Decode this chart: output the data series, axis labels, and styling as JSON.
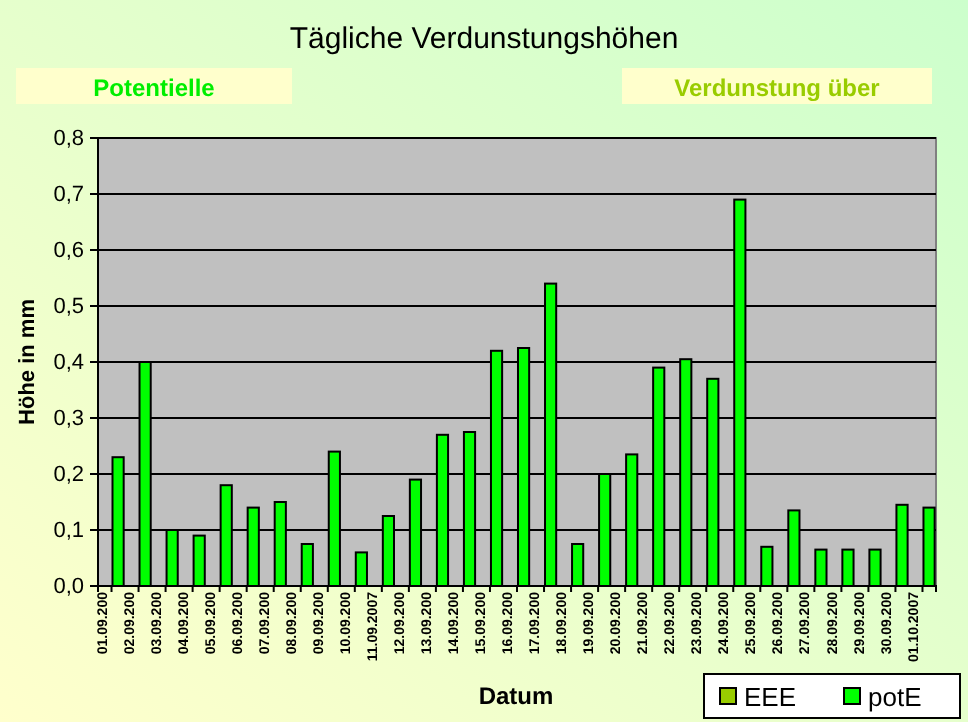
{
  "chart_data": {
    "type": "bar",
    "title": "Tägliche Verdunstungshöhen",
    "xlabel": "Datum",
    "ylabel": "Höhe in mm",
    "annotations": [
      "Potentielle",
      "Verdunstung über"
    ],
    "categories": [
      "01.09.200",
      "02.09.200",
      "03.09.200",
      "04.09.200",
      "05.09.200",
      "06.09.200",
      "07.09.200",
      "08.09.200",
      "09.09.200",
      "10.09.200",
      "11.09.2007",
      "12.09.200",
      "13.09.200",
      "14.09.200",
      "15.09.200",
      "16.09.200",
      "17.09.200",
      "18.09.200",
      "19.09.200",
      "20.09.200",
      "21.09.200",
      "22.09.200",
      "23.09.200",
      "24.09.200",
      "25.09.200",
      "26.09.200",
      "27.09.200",
      "28.09.200",
      "29.09.200",
      "30.09.200",
      "01.10.2007"
    ],
    "series": [
      {
        "name": "EEE",
        "color": "#99cc00",
        "values": [
          0,
          0,
          0,
          0,
          0,
          0,
          0,
          0,
          0,
          0,
          0,
          0,
          0,
          0,
          0,
          0,
          0,
          0,
          0,
          0,
          0,
          0,
          0,
          0,
          0,
          0,
          0,
          0,
          0,
          0,
          0
        ]
      },
      {
        "name": "potE",
        "color": "#00ff00",
        "values": [
          0.23,
          0.4,
          0.1,
          0.09,
          0.18,
          0.14,
          0.15,
          0.075,
          0.24,
          0.06,
          0.125,
          0.19,
          0.27,
          0.275,
          0.42,
          0.425,
          0.54,
          0.075,
          0.2,
          0.235,
          0.39,
          0.405,
          0.37,
          0.69,
          0.07,
          0.135,
          0.065,
          0.065,
          0.065,
          0.145,
          0.14
        ]
      }
    ],
    "ylim": [
      0,
      0.8
    ],
    "yticks": [
      {
        "value": 0,
        "label": "0,0"
      },
      {
        "value": 0.1,
        "label": "0,1"
      },
      {
        "value": 0.2,
        "label": "0,2"
      },
      {
        "value": 0.3,
        "label": "0,3"
      },
      {
        "value": 0.4,
        "label": "0,4"
      },
      {
        "value": 0.5,
        "label": "0,5"
      },
      {
        "value": 0.6,
        "label": "0,6"
      },
      {
        "value": 0.7,
        "label": "0,7"
      },
      {
        "value": 0.8,
        "label": "0,8"
      }
    ],
    "grid": "y",
    "legend": "bottom right"
  }
}
